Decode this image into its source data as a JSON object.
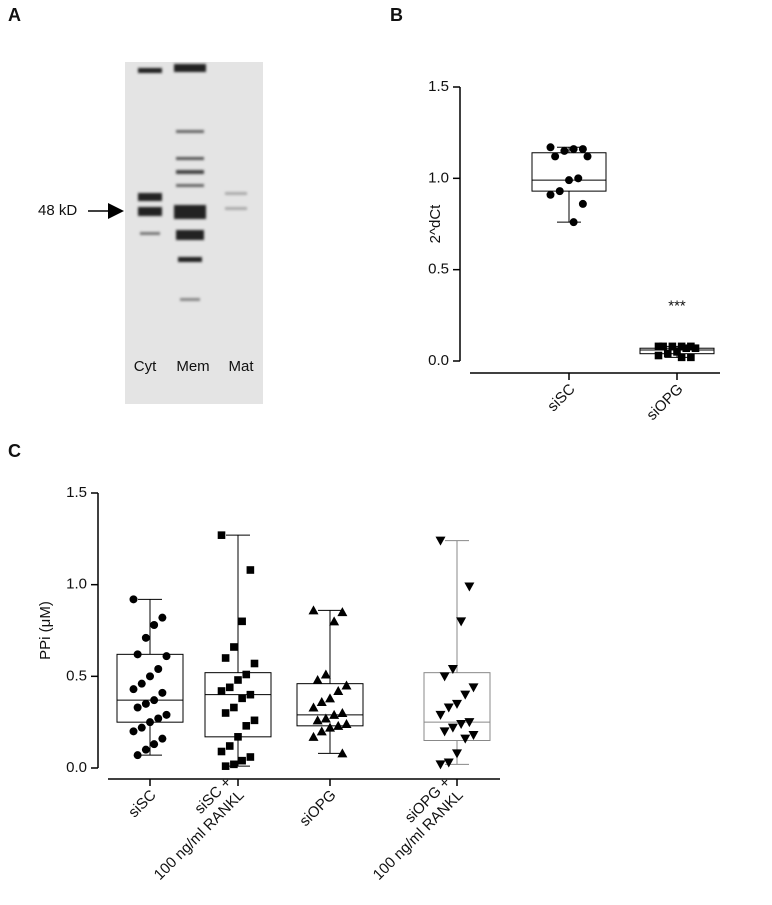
{
  "blot": {
    "panel_label": "A",
    "marker_label": "48 kD",
    "lanes": [
      "Cyt",
      "Mem",
      "Mat"
    ]
  },
  "chart_data": [
    {
      "type": "box",
      "panel_label": "B",
      "ylabel": "2^dCt",
      "ylim": [
        0,
        1.5
      ],
      "yticks": [
        {
          "value": 0,
          "label": "0.0"
        },
        {
          "value": 0.5,
          "label": "0.5"
        },
        {
          "value": 1,
          "label": "1.0"
        },
        {
          "value": 1.5,
          "label": "1.5"
        }
      ],
      "categories": [
        "siSC",
        "siOPG"
      ],
      "boxes": [
        {
          "min": 0.76,
          "q1": 0.93,
          "median": 0.99,
          "q3": 1.14,
          "max": 1.17,
          "marker": "circle",
          "color": "#000000",
          "points": [
            1.17,
            1.16,
            1.16,
            1.15,
            1.12,
            1.12,
            1.0,
            0.99,
            0.93,
            0.91,
            0.86,
            0.76
          ]
        },
        {
          "min": 0.02,
          "q1": 0.04,
          "median": 0.06,
          "q3": 0.07,
          "max": 0.08,
          "marker": "square",
          "color": "#000000",
          "annotation": "***",
          "points": [
            0.08,
            0.08,
            0.08,
            0.08,
            0.08,
            0.07,
            0.07,
            0.05,
            0.04,
            0.03,
            0.02,
            0.02
          ]
        }
      ]
    },
    {
      "type": "box",
      "panel_label": "C",
      "ylabel": "PPi (μM)",
      "ylim": [
        0,
        1.5
      ],
      "yticks": [
        {
          "value": 0,
          "label": "0.0"
        },
        {
          "value": 0.5,
          "label": "0.5"
        },
        {
          "value": 1,
          "label": "1.0"
        },
        {
          "value": 1.5,
          "label": "1.5"
        }
      ],
      "categories": [
        "siSC",
        "siSC +\n100 ng/ml RANKL",
        "siOPG",
        "siOPG +\n100 ng/ml RANKL"
      ],
      "boxes": [
        {
          "min": 0.07,
          "q1": 0.25,
          "median": 0.37,
          "q3": 0.62,
          "max": 0.92,
          "marker": "circle",
          "color": "#000000",
          "points": [
            0.92,
            0.82,
            0.78,
            0.71,
            0.62,
            0.61,
            0.54,
            0.5,
            0.46,
            0.43,
            0.41,
            0.37,
            0.35,
            0.33,
            0.29,
            0.27,
            0.25,
            0.22,
            0.2,
            0.16,
            0.13,
            0.1,
            0.07
          ]
        },
        {
          "min": 0.01,
          "q1": 0.17,
          "median": 0.4,
          "q3": 0.52,
          "max": 1.27,
          "marker": "square",
          "color": "#000000",
          "points": [
            1.27,
            1.08,
            0.8,
            0.66,
            0.6,
            0.57,
            0.51,
            0.48,
            0.44,
            0.42,
            0.4,
            0.38,
            0.33,
            0.3,
            0.26,
            0.23,
            0.17,
            0.12,
            0.09,
            0.06,
            0.04,
            0.02,
            0.01
          ]
        },
        {
          "min": 0.08,
          "q1": 0.23,
          "median": 0.29,
          "q3": 0.46,
          "max": 0.86,
          "marker": "triangle-up",
          "color": "#000000",
          "points": [
            0.86,
            0.85,
            0.8,
            0.51,
            0.48,
            0.45,
            0.42,
            0.38,
            0.36,
            0.33,
            0.3,
            0.29,
            0.27,
            0.26,
            0.24,
            0.23,
            0.22,
            0.2,
            0.17,
            0.08
          ]
        },
        {
          "min": 0.02,
          "q1": 0.15,
          "median": 0.25,
          "q3": 0.52,
          "max": 1.24,
          "marker": "triangle-down",
          "color": "#888888",
          "points": [
            1.24,
            0.99,
            0.8,
            0.54,
            0.5,
            0.44,
            0.4,
            0.35,
            0.33,
            0.29,
            0.25,
            0.24,
            0.22,
            0.2,
            0.18,
            0.16,
            0.08,
            0.03,
            0.02
          ]
        }
      ]
    }
  ]
}
